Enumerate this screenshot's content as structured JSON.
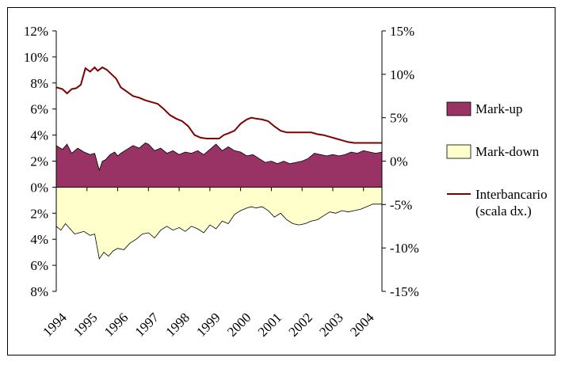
{
  "chart_data": {
    "type": "area",
    "title": "",
    "x_categories": [
      "1994",
      "1995",
      "1996",
      "1997",
      "1998",
      "1999",
      "2000",
      "2001",
      "2002",
      "2003",
      "2004"
    ],
    "y_left": {
      "ylim": [
        -8,
        12
      ],
      "ticks": [
        12,
        10,
        8,
        6,
        4,
        2,
        0,
        -2,
        -4,
        -6,
        -8
      ],
      "tick_labels": [
        "12%",
        "10%",
        "8%",
        "6%",
        "4%",
        "2%",
        "0%",
        "2%",
        "4%",
        "6%",
        "8%"
      ]
    },
    "y_right": {
      "ylim": [
        -15,
        15
      ],
      "ticks": [
        15,
        10,
        5,
        0,
        -5,
        -10,
        -15
      ],
      "tick_labels": [
        "15%",
        "10%",
        "5%",
        "0%",
        "-5%",
        "-10%",
        "-15%"
      ]
    },
    "legend_position": "right",
    "colors": {
      "markup": "#993366",
      "markdown": "#FFFFCC",
      "interbank": "#800000"
    },
    "series": [
      {
        "name": "Mark-up",
        "axis": "left",
        "t": [
          1994.0,
          1994.2,
          1994.35,
          1994.5,
          1994.7,
          1994.9,
          1995.1,
          1995.25,
          1995.4,
          1995.5,
          1995.6,
          1995.75,
          1995.9,
          1996.0,
          1996.1,
          1996.3,
          1996.5,
          1996.7,
          1996.9,
          1997.0,
          1997.2,
          1997.4,
          1997.6,
          1997.8,
          1998.0,
          1998.2,
          1998.4,
          1998.6,
          1998.8,
          1999.0,
          1999.2,
          1999.4,
          1999.6,
          1999.8,
          2000.0,
          2000.2,
          2000.4,
          2000.6,
          2000.8,
          2001.0,
          2001.2,
          2001.4,
          2001.6,
          2001.8,
          2002.0,
          2002.2,
          2002.4,
          2002.6,
          2002.8,
          2003.0,
          2003.2,
          2003.4,
          2003.6,
          2003.8,
          2004.0,
          2004.2,
          2004.4,
          2004.6
        ],
        "values": [
          3.2,
          2.9,
          3.3,
          2.6,
          3.0,
          2.7,
          2.5,
          2.6,
          1.3,
          2.0,
          2.1,
          2.5,
          2.7,
          2.4,
          2.6,
          2.9,
          3.2,
          3.0,
          3.4,
          3.3,
          2.8,
          3.0,
          2.6,
          2.8,
          2.5,
          2.7,
          2.6,
          2.8,
          2.5,
          2.9,
          3.3,
          2.8,
          3.1,
          2.8,
          2.7,
          2.4,
          2.5,
          2.2,
          1.9,
          2.0,
          1.8,
          2.0,
          1.8,
          1.9,
          2.0,
          2.2,
          2.6,
          2.5,
          2.4,
          2.5,
          2.4,
          2.5,
          2.7,
          2.6,
          2.8,
          2.7,
          2.6,
          2.7
        ]
      },
      {
        "name": "Mark-down",
        "axis": "left",
        "t": [
          1994.0,
          1994.15,
          1994.3,
          1994.45,
          1994.6,
          1994.75,
          1994.9,
          1995.1,
          1995.25,
          1995.4,
          1995.55,
          1995.7,
          1995.85,
          1996.0,
          1996.2,
          1996.4,
          1996.6,
          1996.8,
          1997.0,
          1997.2,
          1997.4,
          1997.6,
          1997.8,
          1998.0,
          1998.2,
          1998.4,
          1998.6,
          1998.8,
          1999.0,
          1999.2,
          1999.4,
          1999.6,
          1999.8,
          2000.0,
          2000.2,
          2000.35,
          2000.5,
          2000.7,
          2000.9,
          2001.1,
          2001.3,
          2001.5,
          2001.7,
          2001.9,
          2002.1,
          2002.3,
          2002.5,
          2002.7,
          2002.9,
          2003.1,
          2003.3,
          2003.5,
          2003.7,
          2003.9,
          2004.1,
          2004.3,
          2004.6
        ],
        "values": [
          -3.0,
          -3.3,
          -2.8,
          -3.2,
          -3.6,
          -3.5,
          -3.4,
          -3.7,
          -3.6,
          -5.5,
          -5.0,
          -5.3,
          -4.9,
          -4.7,
          -4.8,
          -4.3,
          -4.0,
          -3.6,
          -3.5,
          -3.9,
          -3.3,
          -3.0,
          -3.3,
          -3.1,
          -3.4,
          -3.0,
          -3.2,
          -3.5,
          -2.9,
          -3.2,
          -2.6,
          -2.8,
          -2.1,
          -1.8,
          -1.6,
          -1.5,
          -1.6,
          -1.5,
          -1.8,
          -2.3,
          -2.0,
          -2.5,
          -2.8,
          -2.9,
          -2.8,
          -2.6,
          -2.5,
          -2.2,
          -1.9,
          -2.0,
          -1.8,
          -1.9,
          -1.8,
          -1.7,
          -1.5,
          -1.3,
          -1.3
        ]
      },
      {
        "name": "Interbancario (scala dx.)",
        "axis": "right",
        "t": [
          1994.0,
          1994.2,
          1994.35,
          1994.5,
          1994.65,
          1994.8,
          1994.95,
          1995.1,
          1995.25,
          1995.35,
          1995.5,
          1995.65,
          1995.8,
          1995.95,
          1996.1,
          1996.3,
          1996.5,
          1996.7,
          1996.9,
          1997.1,
          1997.3,
          1997.5,
          1997.7,
          1997.9,
          1998.1,
          1998.3,
          1998.5,
          1998.7,
          1998.9,
          1999.1,
          1999.3,
          1999.45,
          1999.6,
          1999.8,
          2000.0,
          2000.2,
          2000.35,
          2000.5,
          2000.7,
          2000.9,
          2001.1,
          2001.3,
          2001.5,
          2001.7,
          2001.9,
          2002.1,
          2002.3,
          2002.5,
          2002.7,
          2002.9,
          2003.1,
          2003.3,
          2003.5,
          2003.7,
          2003.9,
          2004.1,
          2004.3,
          2004.6
        ],
        "values": [
          8.5,
          8.3,
          7.8,
          8.3,
          8.4,
          8.8,
          10.7,
          10.3,
          10.8,
          10.4,
          10.8,
          10.5,
          10.0,
          9.5,
          8.5,
          8.0,
          7.5,
          7.3,
          7.0,
          6.8,
          6.6,
          6.0,
          5.3,
          4.9,
          4.6,
          4.0,
          3.0,
          2.7,
          2.6,
          2.6,
          2.6,
          3.0,
          3.2,
          3.5,
          4.3,
          4.8,
          5.0,
          4.9,
          4.8,
          4.6,
          4.0,
          3.5,
          3.3,
          3.3,
          3.3,
          3.3,
          3.3,
          3.1,
          3.0,
          2.8,
          2.6,
          2.4,
          2.2,
          2.1,
          2.1,
          2.1,
          2.1,
          2.1
        ]
      }
    ],
    "legend": [
      "Mark-up",
      "Mark-down",
      "Interbancario",
      "(scala dx.)"
    ]
  }
}
